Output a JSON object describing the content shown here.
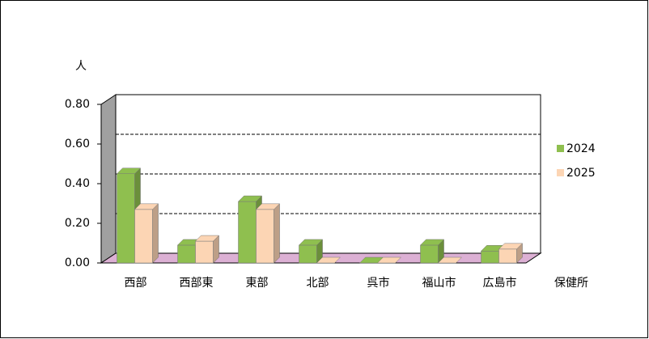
{
  "chart_data": {
    "type": "bar3d",
    "y_unit_label": "人",
    "x_axis_label": "保健所",
    "categories": [
      "西部",
      "西部東",
      "東部",
      "北部",
      "呉市",
      "福山市",
      "広島市"
    ],
    "series": [
      {
        "name": "2024",
        "color": "#8fbf4f",
        "values": [
          0.45,
          0.09,
          0.31,
          0.09,
          0,
          0.09,
          0.06
        ]
      },
      {
        "name": "2025",
        "color": "#fcd5b4",
        "values": [
          0.27,
          0.11,
          0.27,
          0,
          0,
          0,
          0.07
        ]
      }
    ],
    "ylim": [
      0,
      0.8
    ],
    "yticks": [
      {
        "value": 0,
        "label": "0.00"
      },
      {
        "value": 0.2,
        "label": "0.20"
      },
      {
        "value": 0.4,
        "label": "0.40"
      },
      {
        "value": 0.6,
        "label": "0.60"
      },
      {
        "value": 0.8,
        "label": "0.80"
      }
    ],
    "grid": true,
    "legend": "right"
  }
}
